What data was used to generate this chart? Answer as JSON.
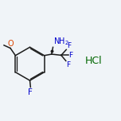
{
  "background_color": "#f0f4f8",
  "bond_color": "#1c1c1c",
  "atom_colors": {
    "N": "#0000cc",
    "O": "#dd4400",
    "F": "#0000cc",
    "Cl": "#006600",
    "C": "#1c1c1c"
  },
  "line_width": 1.1,
  "font_size": 6.5,
  "hcl_color": "#006600",
  "hcl_fontsize": 9
}
